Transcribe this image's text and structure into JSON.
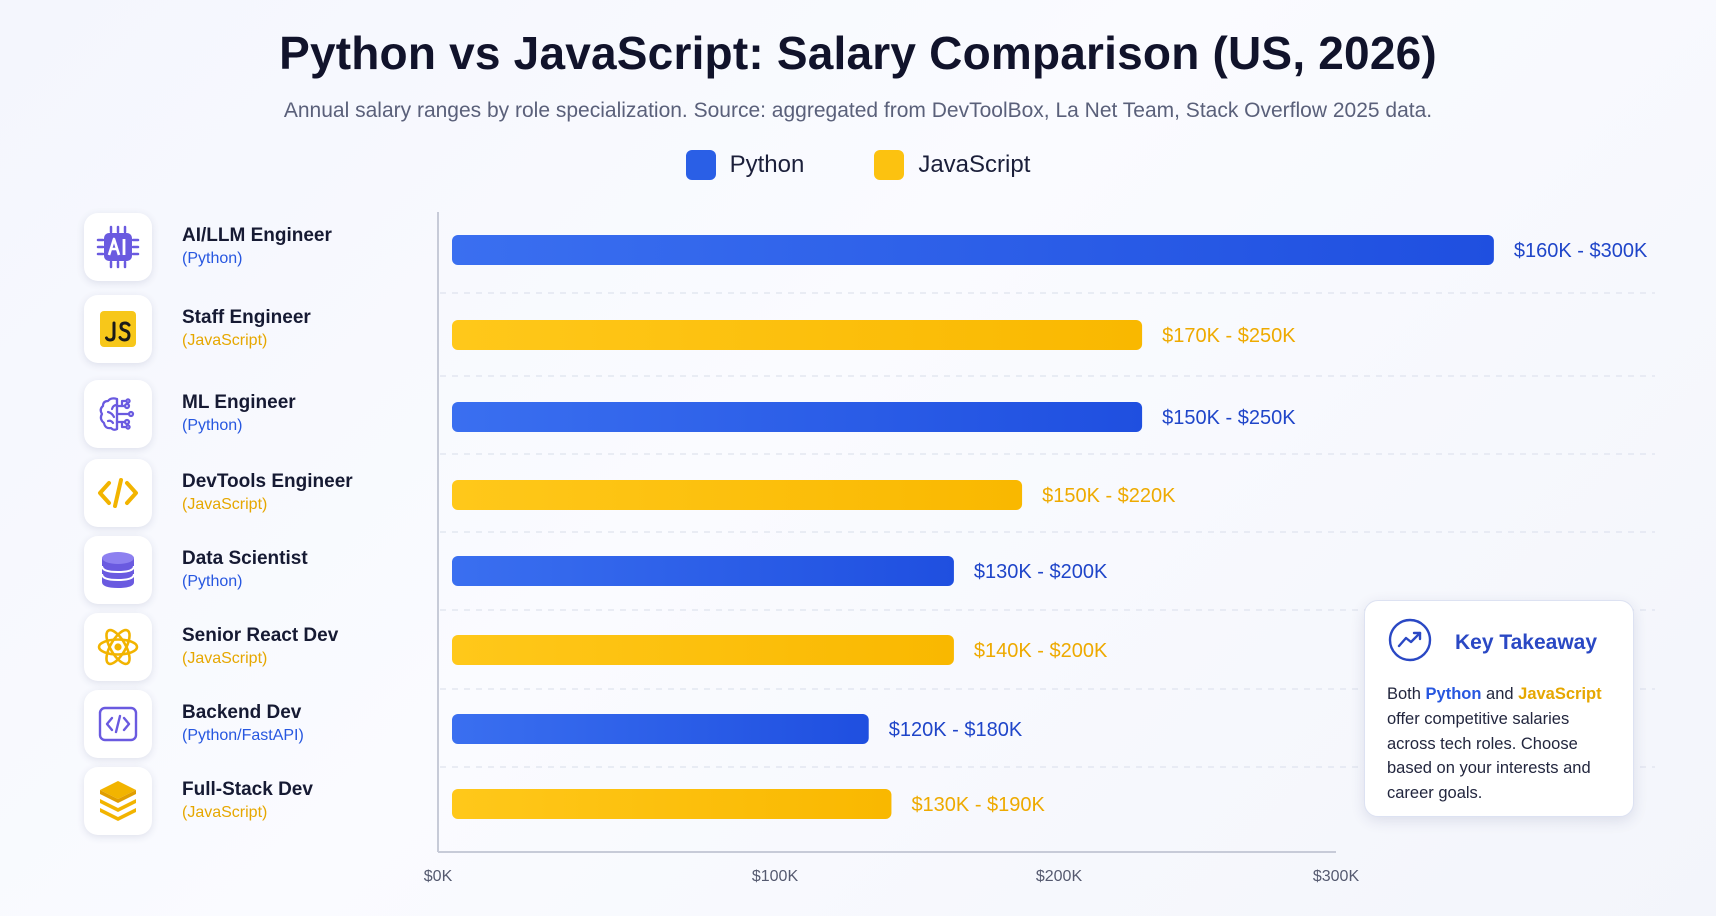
{
  "title": "Python vs JavaScript: Salary Comparison (US, 2026)",
  "subtitle": "Annual salary ranges by role specialization. Source: aggregated from DevToolBox, La Net Team, Stack Overflow 2025 data.",
  "legend": [
    {
      "name": "Python",
      "color": "#2a5fe6"
    },
    {
      "name": "JavaScript",
      "color": "#fcc210"
    }
  ],
  "chart_data": {
    "type": "bar",
    "orientation": "horizontal",
    "x_ticks": [
      "$0K",
      "$100K",
      "$200K",
      "$300K"
    ],
    "xlim": [
      0,
      300
    ],
    "grid": "horizontal-dashed",
    "categories": [
      {
        "name": "AI/LLM Engineer",
        "lang": "(Python)",
        "series": "Python",
        "icon": "ai-chip-icon",
        "low": 160,
        "high": 300,
        "bar_value": 357,
        "label": "$160K - $300K"
      },
      {
        "name": "Staff Engineer",
        "lang": "(JavaScript)",
        "series": "JavaScript",
        "icon": "js-logo-icon",
        "low": 170,
        "high": 250,
        "bar_value": 230,
        "label": "$170K - $250K"
      },
      {
        "name": "ML Engineer",
        "lang": "(Python)",
        "series": "Python",
        "icon": "brain-icon",
        "low": 150,
        "high": 250,
        "bar_value": 230,
        "label": "$150K - $250K"
      },
      {
        "name": "DevTools Engineer",
        "lang": "(JavaScript)",
        "series": "JavaScript",
        "icon": "code-brackets-icon",
        "low": 150,
        "high": 220,
        "bar_value": 187,
        "label": "$150K - $220K"
      },
      {
        "name": "Data Scientist",
        "lang": "(Python)",
        "series": "Python",
        "icon": "database-icon",
        "low": 130,
        "high": 200,
        "bar_value": 163,
        "label": "$130K - $200K"
      },
      {
        "name": "Senior React Dev",
        "lang": "(JavaScript)",
        "series": "JavaScript",
        "icon": "react-atom-icon",
        "low": 140,
        "high": 200,
        "bar_value": 163,
        "label": "$140K - $200K"
      },
      {
        "name": "Backend Dev",
        "lang": "(Python/FastAPI)",
        "series": "Python",
        "icon": "code-window-icon",
        "low": 120,
        "high": 180,
        "bar_value": 133,
        "label": "$120K - $180K"
      },
      {
        "name": "Full-Stack Dev",
        "lang": "(JavaScript)",
        "series": "JavaScript",
        "icon": "layers-stack-icon",
        "low": 130,
        "high": 190,
        "bar_value": 141,
        "label": "$130K - $190K"
      }
    ],
    "colors": {
      "Python": "#2a5fe6",
      "JavaScript": "#fcc210"
    },
    "label_colors": {
      "Python": "#1f45c9",
      "JavaScript": "#eeaa00"
    }
  },
  "takeaway": {
    "title": "Key Takeaway",
    "icon": "trending-up-icon",
    "before": "Both ",
    "python": "Python",
    "and": " and ",
    "javascript": "JavaScript",
    "after": " offer competitive salaries across tech roles. Choose based on your interests and career goals."
  }
}
